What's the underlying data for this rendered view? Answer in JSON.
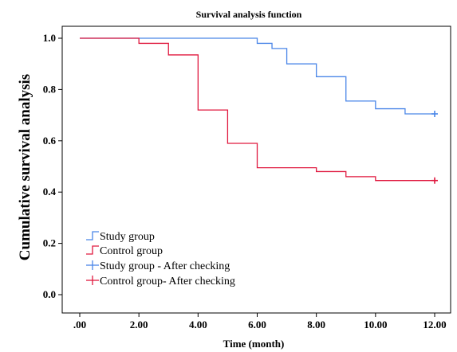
{
  "chart_data": {
    "type": "line",
    "subtype": "kaplan-meier-step",
    "title": "Survival analysis function",
    "xlabel": "Time (month)",
    "ylabel": "Cumulative survival analysis",
    "xlim": [
      0,
      12
    ],
    "ylim": [
      0,
      1.0
    ],
    "x_ticks": [
      0,
      2,
      4,
      6,
      8,
      10,
      12
    ],
    "x_tick_labels": [
      ".00",
      "2.00",
      "4.00",
      "6.00",
      "8.00",
      "10.00",
      "12.00"
    ],
    "y_ticks": [
      0,
      0.2,
      0.4,
      0.6,
      0.8,
      1.0
    ],
    "y_tick_labels": [
      "0.0",
      "0.2",
      "0.4",
      "0.6",
      "0.8",
      "1.0"
    ],
    "grid": false,
    "legend_position": "bottom-left",
    "series": [
      {
        "name": "Study group",
        "color": "#4a86e8",
        "steps": [
          [
            0,
            1.0
          ],
          [
            6,
            0.98
          ],
          [
            6.5,
            0.96
          ],
          [
            7,
            0.9
          ],
          [
            8,
            0.85
          ],
          [
            9,
            0.755
          ],
          [
            10,
            0.725
          ],
          [
            11,
            0.705
          ],
          [
            12,
            0.705
          ]
        ]
      },
      {
        "name": "Control group",
        "color": "#e0193f",
        "steps": [
          [
            0,
            1.0
          ],
          [
            2,
            0.98
          ],
          [
            3,
            0.935
          ],
          [
            4,
            0.72
          ],
          [
            5,
            0.59
          ],
          [
            6,
            0.495
          ],
          [
            8,
            0.48
          ],
          [
            9,
            0.46
          ],
          [
            10,
            0.445
          ],
          [
            12,
            0.445
          ]
        ]
      }
    ],
    "censored": [
      {
        "name": "Study group - After checking",
        "color": "#4a86e8",
        "x": 12,
        "y": 0.705
      },
      {
        "name": "Control group- After checking",
        "color": "#e0193f",
        "x": 12,
        "y": 0.445
      }
    ]
  }
}
